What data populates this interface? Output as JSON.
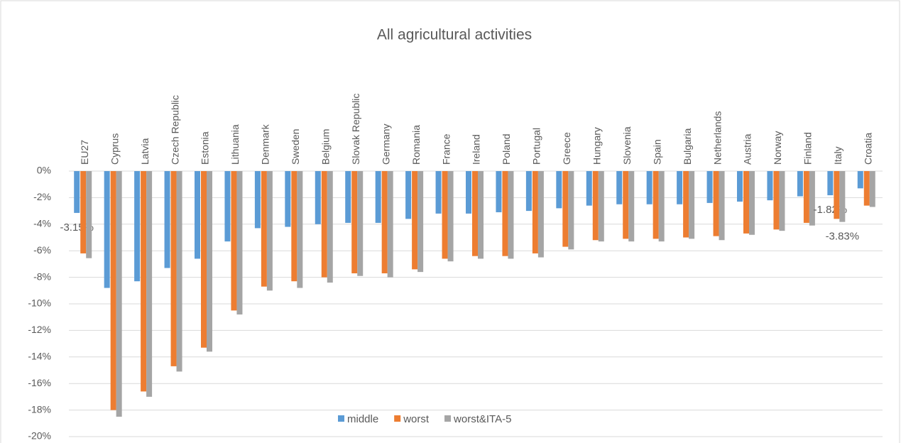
{
  "chart_data": {
    "type": "bar",
    "title": "All agricultural activities",
    "categories": [
      "EU27",
      "Cyprus",
      "Latvia",
      "Czech Republic",
      "Estonia",
      "Lithuania",
      "Denmark",
      "Sweden",
      "Belgium",
      "Slovak Republic",
      "Germany",
      "Romania",
      "France",
      "Ireland",
      "Poland",
      "Portugal",
      "Greece",
      "Hungary",
      "Slovenia",
      "Spain",
      "Bulgaria",
      "Netherlands",
      "Austria",
      "Norway",
      "Finland",
      "Italy",
      "Croatia"
    ],
    "series": [
      {
        "name": "middle",
        "color": "#5b9bd5",
        "values": [
          -3.15,
          -8.8,
          -8.3,
          -7.3,
          -6.6,
          -5.3,
          -4.3,
          -4.2,
          -4.0,
          -3.9,
          -3.9,
          -3.6,
          -3.2,
          -3.2,
          -3.1,
          -3.0,
          -2.8,
          -2.6,
          -2.5,
          -2.5,
          -2.5,
          -2.4,
          -2.3,
          -2.2,
          -1.9,
          -1.82,
          -1.3
        ],
        "value_labels": [
          "-3.15%",
          null,
          null,
          null,
          null,
          null,
          null,
          null,
          null,
          null,
          null,
          null,
          null,
          null,
          null,
          null,
          null,
          null,
          null,
          null,
          null,
          null,
          null,
          null,
          null,
          "-1.82%",
          null
        ]
      },
      {
        "name": "worst",
        "color": "#ed7d31",
        "values": [
          -6.2,
          -18.0,
          -16.6,
          -14.7,
          -13.3,
          -10.5,
          -8.7,
          -8.3,
          -8.0,
          -7.7,
          -7.7,
          -7.4,
          -6.6,
          -6.4,
          -6.4,
          -6.2,
          -5.7,
          -5.2,
          -5.1,
          -5.1,
          -5.0,
          -4.9,
          -4.7,
          -4.4,
          -3.9,
          -3.6,
          -2.6
        ]
      },
      {
        "name": "worst&ITA-5",
        "color": "#a5a5a5",
        "values": [
          -6.56,
          -18.5,
          -17.0,
          -15.1,
          -13.6,
          -10.8,
          -9.0,
          -8.8,
          -8.4,
          -7.9,
          -8.0,
          -7.6,
          -6.8,
          -6.6,
          -6.6,
          -6.5,
          -5.9,
          -5.3,
          -5.3,
          -5.3,
          -5.1,
          -5.2,
          -4.8,
          -4.5,
          -4.1,
          -3.83,
          -2.7
        ],
        "value_labels": [
          null,
          null,
          null,
          null,
          null,
          null,
          null,
          null,
          null,
          null,
          null,
          null,
          null,
          null,
          null,
          null,
          null,
          null,
          null,
          null,
          null,
          null,
          null,
          null,
          null,
          "-3.83%",
          null
        ]
      }
    ],
    "ylim": [
      -20,
      0
    ],
    "yticks": [
      {
        "value": 0,
        "label": "0%"
      },
      {
        "value": -2,
        "label": "-2%"
      },
      {
        "value": -4,
        "label": "-4%"
      },
      {
        "value": -6,
        "label": "-6%"
      },
      {
        "value": -8,
        "label": "-8%"
      },
      {
        "value": -10,
        "label": "-10%"
      },
      {
        "value": -12,
        "label": "-12%"
      },
      {
        "value": -14,
        "label": "-14%"
      },
      {
        "value": -16,
        "label": "-16%"
      },
      {
        "value": -18,
        "label": "-18%"
      },
      {
        "value": -20,
        "label": "-20%"
      }
    ],
    "grid": true
  }
}
